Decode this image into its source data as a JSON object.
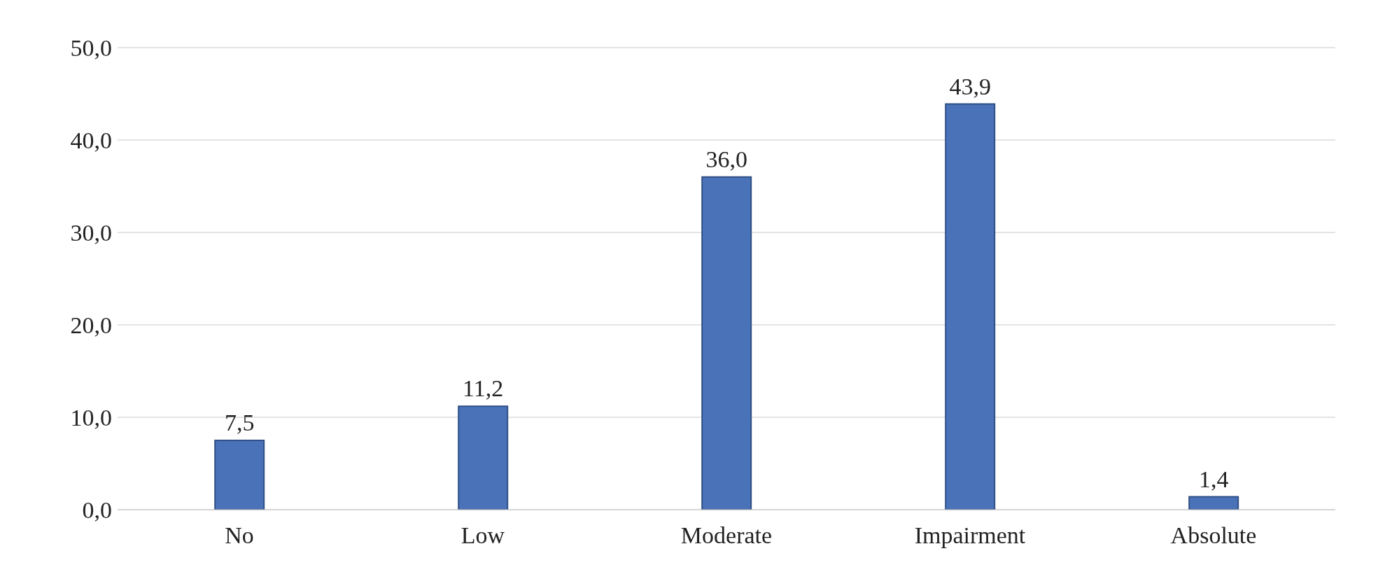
{
  "chart_data": {
    "type": "bar",
    "categories": [
      "No",
      "Low",
      "Moderate",
      "Impairment",
      "Absolute"
    ],
    "values": [
      7.5,
      11.2,
      36.0,
      43.9,
      1.4
    ],
    "value_labels": [
      "7,5",
      "11,2",
      "36,0",
      "43,9",
      "1,4"
    ],
    "color": "#4a72b8",
    "ylim": [
      0,
      50
    ],
    "yticks": [
      {
        "value": 0,
        "label": "0,0"
      },
      {
        "value": 10,
        "label": "10,0"
      },
      {
        "value": 20,
        "label": "20,0"
      },
      {
        "value": 30,
        "label": "30,0"
      },
      {
        "value": 40,
        "label": "40,0"
      },
      {
        "value": 50,
        "label": "50,0"
      }
    ],
    "grid": "y"
  }
}
